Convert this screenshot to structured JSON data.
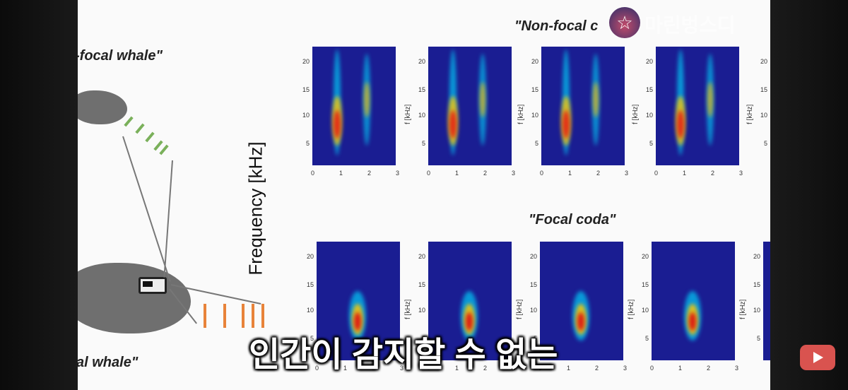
{
  "slide": {
    "top_left_heading": "-focal whale\"",
    "bottom_left_heading": "al whale\"",
    "top_heading": "\"Non-focal c",
    "bottom_heading": "\"Focal coda\"",
    "ylabel": "Frequency [kHz]",
    "panel_ylabel": "f [kHz]",
    "y_ticks": [
      "20",
      "15",
      "10",
      "5"
    ],
    "x_ticks": [
      "0",
      "1",
      "2",
      "3"
    ]
  },
  "overlay": {
    "subtitle": "인간이 감지할 수 없는",
    "channel_icon": "star-icon",
    "channel_name": "마린벙스디",
    "youtube_icon": "youtube-play-icon"
  },
  "colors": {
    "spectrogram_background": "#1a1d92",
    "green_clicks": "#7ab05a",
    "orange_clicks": "#e8833a",
    "youtube_red": "#d9534f"
  }
}
